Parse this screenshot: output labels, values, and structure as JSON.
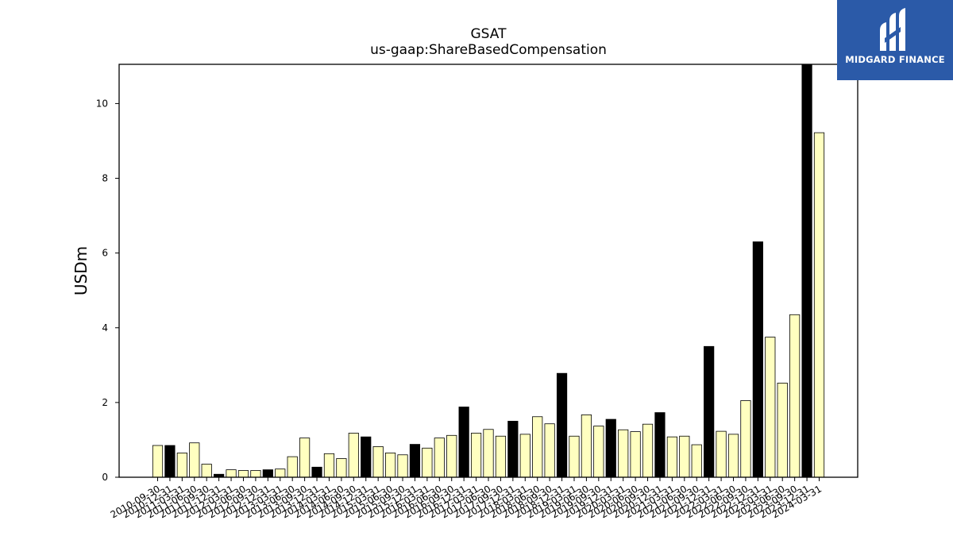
{
  "chart_data": {
    "type": "bar",
    "title": "GSAT",
    "subtitle": "us-gaap:ShareBasedCompensation",
    "xlabel": "",
    "ylabel": "USDm",
    "ylim": [
      0,
      11.05
    ],
    "yticks": [
      0,
      2,
      4,
      6,
      8,
      10
    ],
    "grid": false,
    "colors": {
      "quarterly": "#ffffc0",
      "annual": "#000000",
      "edge": "#000000"
    },
    "categories": [
      "2010-09-30",
      "2010-12-31",
      "2011-03-31",
      "2011-06-30",
      "2011-09-30",
      "2011-12-31",
      "2012-03-31",
      "2012-06-30",
      "2012-09-30",
      "2012-12-31",
      "2013-03-31",
      "2013-06-30",
      "2013-09-30",
      "2013-12-31",
      "2014-03-31",
      "2014-06-30",
      "2014-09-30",
      "2014-12-31",
      "2015-03-31",
      "2015-06-30",
      "2015-09-30",
      "2015-12-31",
      "2016-03-31",
      "2016-06-30",
      "2016-09-30",
      "2016-12-31",
      "2017-03-31",
      "2017-06-30",
      "2017-09-30",
      "2017-12-31",
      "2018-03-31",
      "2018-06-30",
      "2018-09-30",
      "2018-12-31",
      "2019-03-31",
      "2019-06-30",
      "2019-09-30",
      "2019-12-31",
      "2020-03-31",
      "2020-06-30",
      "2020-09-30",
      "2020-12-31",
      "2021-03-31",
      "2021-06-30",
      "2021-09-30",
      "2021-12-31",
      "2022-03-31",
      "2022-06-30",
      "2022-09-30",
      "2022-12-31",
      "2023-03-31",
      "2023-06-30",
      "2023-09-30",
      "2023-12-31",
      "2024-03-31"
    ],
    "values": [
      0.85,
      0.85,
      0.65,
      0.92,
      0.35,
      0.08,
      0.2,
      0.18,
      0.18,
      0.2,
      0.22,
      0.55,
      1.05,
      0.27,
      0.63,
      0.5,
      1.18,
      1.08,
      0.82,
      0.65,
      0.6,
      0.88,
      0.78,
      1.05,
      1.12,
      1.88,
      1.18,
      1.28,
      1.1,
      1.5,
      1.15,
      1.62,
      1.43,
      2.78,
      1.1,
      1.67,
      1.37,
      1.55,
      1.27,
      1.22,
      1.42,
      1.73,
      1.08,
      1.1,
      0.87,
      3.5,
      1.23,
      1.15,
      2.05,
      6.3,
      3.75,
      2.52,
      4.35,
      11.05,
      9.22
    ],
    "is_annual": [
      false,
      true,
      false,
      false,
      false,
      true,
      false,
      false,
      false,
      true,
      false,
      false,
      false,
      true,
      false,
      false,
      false,
      true,
      false,
      false,
      false,
      true,
      false,
      false,
      false,
      true,
      false,
      false,
      false,
      true,
      false,
      false,
      false,
      true,
      false,
      false,
      false,
      true,
      false,
      false,
      false,
      true,
      false,
      false,
      false,
      true,
      false,
      false,
      false,
      true,
      false,
      false,
      false,
      true,
      false
    ]
  },
  "logo": {
    "text": "MIDGARD FINANCE"
  }
}
